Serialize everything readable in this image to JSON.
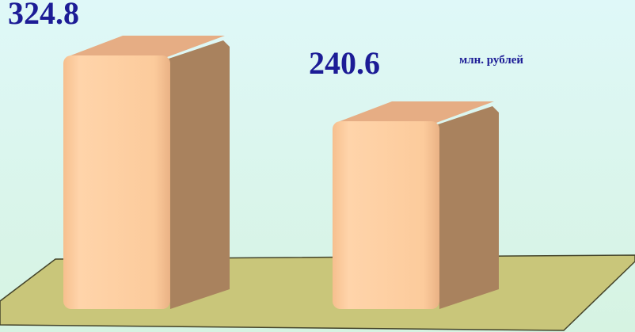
{
  "chart_data": {
    "type": "bar3d",
    "unit_label": "млн. рублей",
    "categories": [
      null,
      null
    ],
    "values": [
      324.8,
      240.6
    ],
    "color": "#fcc99a",
    "ylim": [
      0,
      340
    ]
  }
}
